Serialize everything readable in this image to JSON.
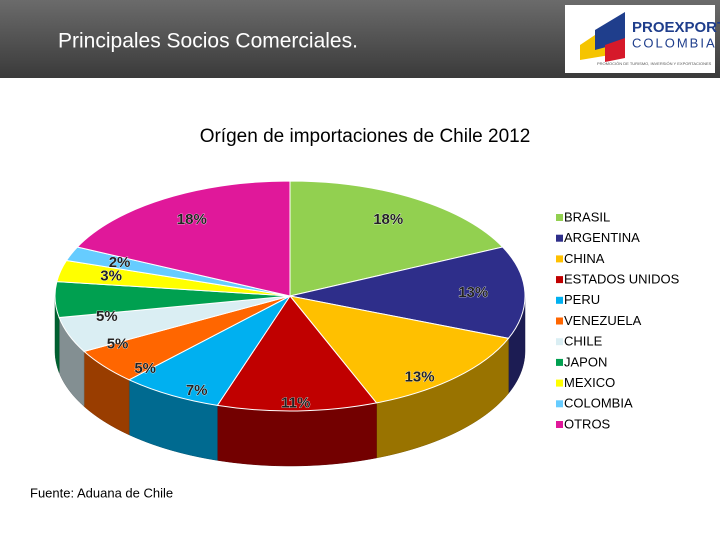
{
  "header": {
    "title": "Principales Socios Comerciales.",
    "logo": {
      "name": "PROEXPORT",
      "country": "COLOMBIA",
      "tagline": "PROMOCIÓN DE TURISMO, INVERSIÓN Y EXPORTACIONES"
    }
  },
  "chart_data": {
    "type": "pie",
    "title": "Orígen de importaciones de Chile 2012",
    "categories": [
      "BRASIL",
      "ARGENTINA",
      "CHINA",
      "ESTADOS UNIDOS",
      "PERU",
      "VENEZUELA",
      "CHILE",
      "JAPON",
      "MEXICO",
      "COLOMBIA",
      "OTROS"
    ],
    "values": [
      18,
      13,
      13,
      11,
      7,
      5,
      5,
      5,
      3,
      2,
      18
    ],
    "value_labels": [
      "18%",
      "13%",
      "13%",
      "11%",
      "7%",
      "5%",
      "5%",
      "5%",
      "3%",
      "2%",
      "18%"
    ],
    "colors": [
      "#92d050",
      "#2e2e8a",
      "#ffc000",
      "#c00000",
      "#00b0f0",
      "#ff6600",
      "#daeef3",
      "#00a050",
      "#ffff00",
      "#66ccff",
      "#e0189a"
    ],
    "legend": "right",
    "source": "Fuente: Aduana de Chile"
  }
}
